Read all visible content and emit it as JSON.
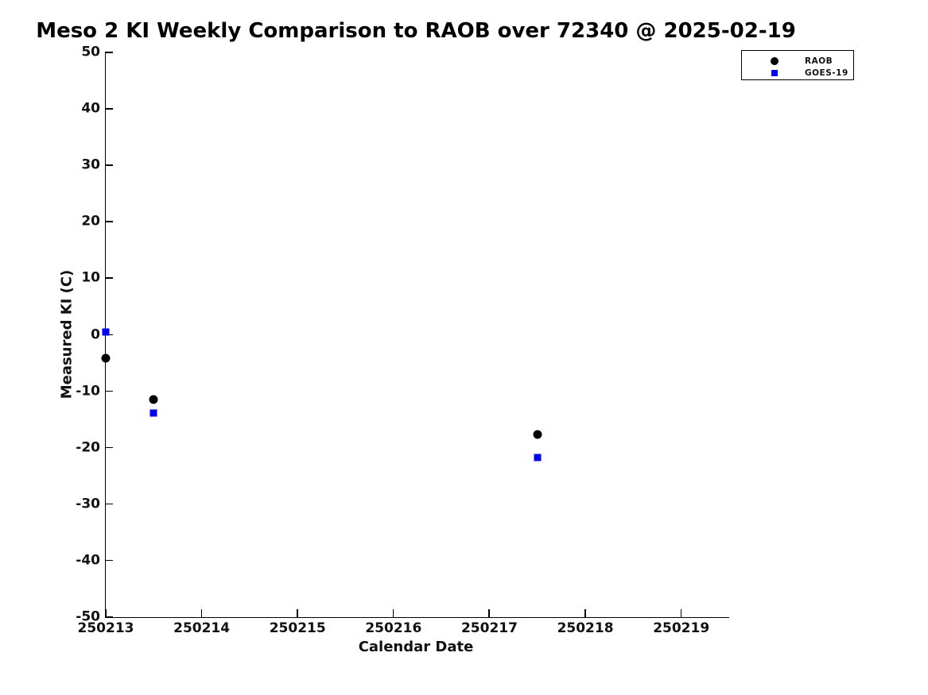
{
  "chart_data": {
    "type": "scatter",
    "title": "Meso 2 KI Weekly Comparison to RAOB over 72340 @ 2025-02-19",
    "xlabel": "Calendar Date",
    "ylabel": "Measured KI (C)",
    "xlim": [
      250213,
      250219.5
    ],
    "ylim": [
      -50,
      50
    ],
    "x_ticks": [
      250213,
      250214,
      250215,
      250216,
      250217,
      250218,
      250219
    ],
    "y_ticks": [
      50,
      40,
      30,
      20,
      10,
      0,
      -10,
      -20,
      -30,
      -40,
      -50
    ],
    "grid": false,
    "axis_color": "#000000",
    "text_color": "#111111",
    "background": "#ffffff",
    "legend_position": "top-right",
    "series": [
      {
        "name": "RAOB",
        "marker": "circle",
        "color": "#000000",
        "marker_size": 11,
        "x": [
          250213.0,
          250213.5,
          250217.5
        ],
        "y": [
          -4.2,
          -11.5,
          -17.6
        ]
      },
      {
        "name": "GOES-19",
        "marker": "square",
        "color": "#0000ee",
        "marker_size": 9,
        "x": [
          250213.0,
          250213.5,
          250217.5
        ],
        "y": [
          0.5,
          -13.8,
          -21.8
        ]
      }
    ]
  }
}
